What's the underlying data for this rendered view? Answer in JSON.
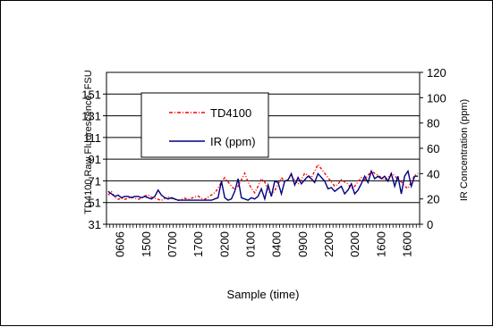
{
  "chart_data": {
    "type": "line",
    "x_tick_labels": [
      "0606",
      "1500",
      "0700",
      "1700",
      "0200",
      "0100",
      "0400",
      "0900",
      "2200",
      "0200",
      "1600",
      "1600"
    ],
    "xlabel": "Sample (time)",
    "ylabel_left": "TD4100 Raw Fluorescence, FSU",
    "ylabel_right": "IR Concentration (ppm)",
    "y_left_ticks": [
      31,
      51,
      71,
      91,
      111,
      131,
      151
    ],
    "y_left_range": [
      31,
      171
    ],
    "y_right_ticks": [
      0,
      20,
      40,
      60,
      80,
      100,
      120
    ],
    "y_right_range": [
      0,
      120
    ],
    "grid": "horizontal",
    "legend_position": "upper-left inside plot",
    "series": [
      {
        "name": "TD4100",
        "axis": "left",
        "style": "dash-dot",
        "color": "#ff0000",
        "values": [
          58,
          61,
          56,
          54,
          55,
          54,
          55,
          56,
          55,
          54,
          55,
          57,
          58,
          56,
          55,
          54,
          53,
          55,
          56,
          55,
          54,
          53,
          54,
          55,
          54,
          55,
          56,
          57,
          55,
          54,
          56,
          58,
          60,
          64,
          70,
          74,
          70,
          66,
          63,
          66,
          72,
          78,
          70,
          64,
          60,
          66,
          73,
          70,
          62,
          58,
          62,
          68,
          74,
          70,
          72,
          76,
          72,
          68,
          72,
          78,
          76,
          74,
          80,
          86,
          82,
          78,
          74,
          70,
          66,
          68,
          72,
          70,
          68,
          64,
          66,
          70,
          74,
          72,
          76,
          80,
          78,
          76,
          74,
          72,
          74,
          78,
          76,
          72,
          70,
          66,
          64,
          70,
          76,
          78
        ]
      },
      {
        "name": "IR (ppm)",
        "axis": "right",
        "style": "solid",
        "color": "#000080",
        "values": [
          26,
          24,
          22,
          23,
          21,
          22,
          22,
          21,
          22,
          22,
          21,
          22,
          21,
          20,
          22,
          27,
          23,
          21,
          20,
          21,
          20,
          19,
          19,
          19,
          19,
          19,
          19,
          19,
          19,
          19,
          19,
          19,
          20,
          21,
          34,
          21,
          19,
          20,
          26,
          36,
          21,
          20,
          19,
          21,
          20,
          22,
          28,
          20,
          31,
          22,
          34,
          33,
          24,
          34,
          35,
          40,
          31,
          37,
          32,
          35,
          38,
          36,
          33,
          40,
          37,
          34,
          28,
          29,
          26,
          28,
          30,
          24,
          27,
          32,
          24,
          27,
          32,
          38,
          33,
          42,
          36,
          38,
          36,
          38,
          34,
          40,
          30,
          38,
          24,
          38,
          42,
          30,
          38,
          38
        ]
      }
    ]
  }
}
